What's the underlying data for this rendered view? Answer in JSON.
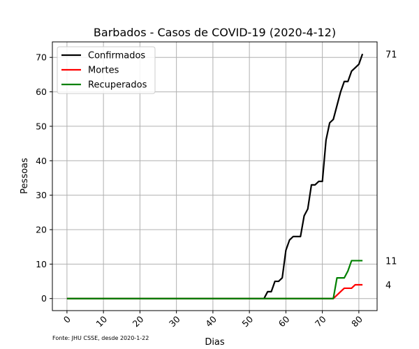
{
  "chart_data": {
    "type": "line",
    "title": "Barbados - Casos de COVID-19 (2020-4-12)",
    "xlabel": "Dias",
    "ylabel": "Pessoas",
    "source_note": "Fonte: JHU CSSE, desde 2020-1-22",
    "xlim": [
      -4,
      85
    ],
    "ylim": [
      -3.5,
      74.5
    ],
    "x_ticks": [
      0,
      10,
      20,
      30,
      40,
      50,
      60,
      70,
      80
    ],
    "y_ticks": [
      0,
      10,
      20,
      30,
      40,
      50,
      60,
      70
    ],
    "grid": true,
    "legend_position": "top-left",
    "series": [
      {
        "name": "Confirmados",
        "color": "#000000",
        "end_label": "71",
        "points": [
          [
            0,
            0
          ],
          [
            54,
            0
          ],
          [
            55,
            2
          ],
          [
            56,
            2
          ],
          [
            57,
            5
          ],
          [
            58,
            5
          ],
          [
            59,
            6
          ],
          [
            60,
            14
          ],
          [
            61,
            17
          ],
          [
            62,
            18
          ],
          [
            63,
            18
          ],
          [
            64,
            18
          ],
          [
            65,
            24
          ],
          [
            66,
            26
          ],
          [
            67,
            33
          ],
          [
            68,
            33
          ],
          [
            69,
            34
          ],
          [
            70,
            34
          ],
          [
            71,
            46
          ],
          [
            72,
            51
          ],
          [
            73,
            52
          ],
          [
            74,
            56
          ],
          [
            75,
            60
          ],
          [
            76,
            63
          ],
          [
            77,
            63
          ],
          [
            78,
            66
          ],
          [
            79,
            67
          ],
          [
            80,
            68
          ],
          [
            81,
            71
          ]
        ]
      },
      {
        "name": "Mortes",
        "color": "#ff0000",
        "end_label": "4",
        "points": [
          [
            0,
            0
          ],
          [
            73,
            0
          ],
          [
            74,
            1
          ],
          [
            75,
            2
          ],
          [
            76,
            3
          ],
          [
            77,
            3
          ],
          [
            78,
            3
          ],
          [
            79,
            4
          ],
          [
            80,
            4
          ],
          [
            81,
            4
          ]
        ]
      },
      {
        "name": "Recuperados",
        "color": "#008000",
        "end_label": "11",
        "points": [
          [
            0,
            0
          ],
          [
            73,
            0
          ],
          [
            74,
            6
          ],
          [
            75,
            6
          ],
          [
            76,
            6
          ],
          [
            77,
            8
          ],
          [
            78,
            11
          ],
          [
            79,
            11
          ],
          [
            80,
            11
          ],
          [
            81,
            11
          ]
        ]
      }
    ]
  }
}
